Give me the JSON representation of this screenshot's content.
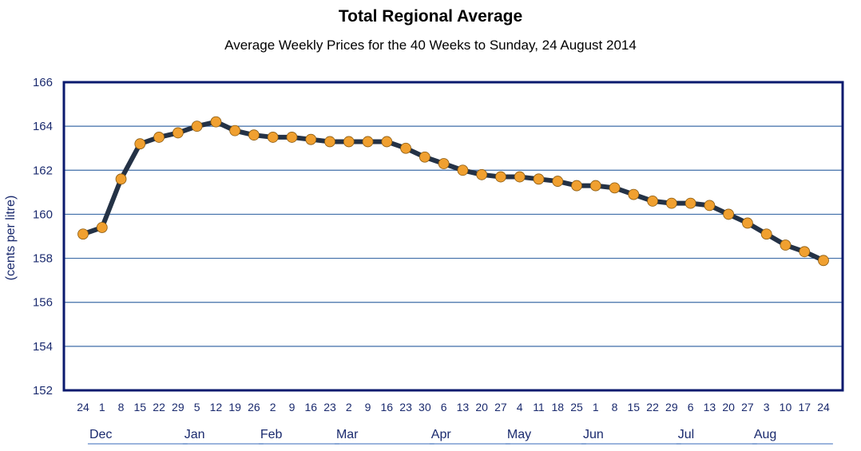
{
  "chart_data": {
    "type": "line",
    "title": "Total Regional Average",
    "subtitle": "Average Weekly Prices for the 40 Weeks to Sunday, 24 August 2014",
    "ylabel": "(cents per litre)",
    "xlabel": "",
    "ylim": [
      152,
      166
    ],
    "yticks": [
      152,
      154,
      156,
      158,
      160,
      162,
      164,
      166
    ],
    "grid": true,
    "x": [
      "24",
      "1",
      "8",
      "15",
      "22",
      "29",
      "5",
      "12",
      "19",
      "26",
      "2",
      "9",
      "16",
      "23",
      "2",
      "9",
      "16",
      "23",
      "30",
      "6",
      "13",
      "20",
      "27",
      "4",
      "11",
      "18",
      "25",
      "1",
      "8",
      "15",
      "22",
      "29",
      "6",
      "13",
      "20",
      "27",
      "3",
      "10",
      "17",
      "24"
    ],
    "months": [
      {
        "label": "Dec",
        "start": 1,
        "end": 5
      },
      {
        "label": "Jan",
        "start": 6,
        "end": 9
      },
      {
        "label": "Feb",
        "start": 10,
        "end": 13
      },
      {
        "label": "Mar",
        "start": 14,
        "end": 18
      },
      {
        "label": "Apr",
        "start": 19,
        "end": 22
      },
      {
        "label": "May",
        "start": 23,
        "end": 26
      },
      {
        "label": "Jun",
        "start": 27,
        "end": 31
      },
      {
        "label": "Jul",
        "start": 32,
        "end": 35
      },
      {
        "label": "Aug",
        "start": 36,
        "end": 39
      }
    ],
    "series": [
      {
        "values": [
          159.1,
          159.4,
          161.6,
          163.2,
          163.5,
          163.7,
          164.0,
          164.2,
          163.8,
          163.6,
          163.5,
          163.5,
          163.4,
          163.3,
          163.3,
          163.3,
          163.3,
          163.0,
          162.6,
          162.3,
          162.0,
          161.8,
          161.7,
          161.7,
          161.6,
          161.5,
          161.3,
          161.3,
          161.2,
          160.9,
          160.6,
          160.5,
          160.5,
          160.4,
          160.0,
          159.6,
          159.1,
          158.6,
          158.3,
          157.9
        ],
        "color": "#243246",
        "marker_color": "#f0a030"
      }
    ],
    "colors": {
      "frame": "#0a1a6e",
      "grid": "#3f6ea8",
      "axis_text": "#1a2a6e",
      "month_underline": "#7a9cd0"
    }
  }
}
